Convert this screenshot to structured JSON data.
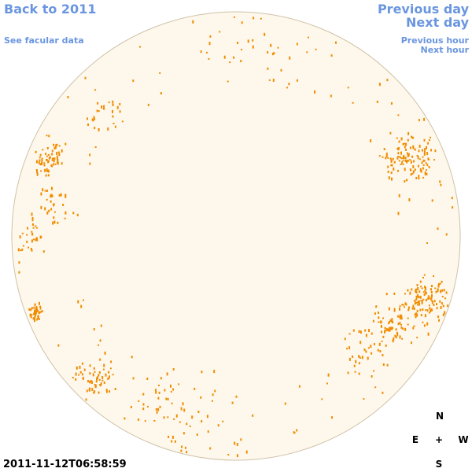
{
  "nav": {
    "back": "Back to 2011",
    "facular": "See facular data",
    "previous_day": "Previous day",
    "next_day": "Next day",
    "previous_hour": "Previous hour",
    "next_hour": "Next hour"
  },
  "timestamp": "2011-11-12T06:58:59",
  "compass": {
    "north": "N",
    "east": "E",
    "center": "+",
    "west": "W",
    "south": "S"
  }
}
